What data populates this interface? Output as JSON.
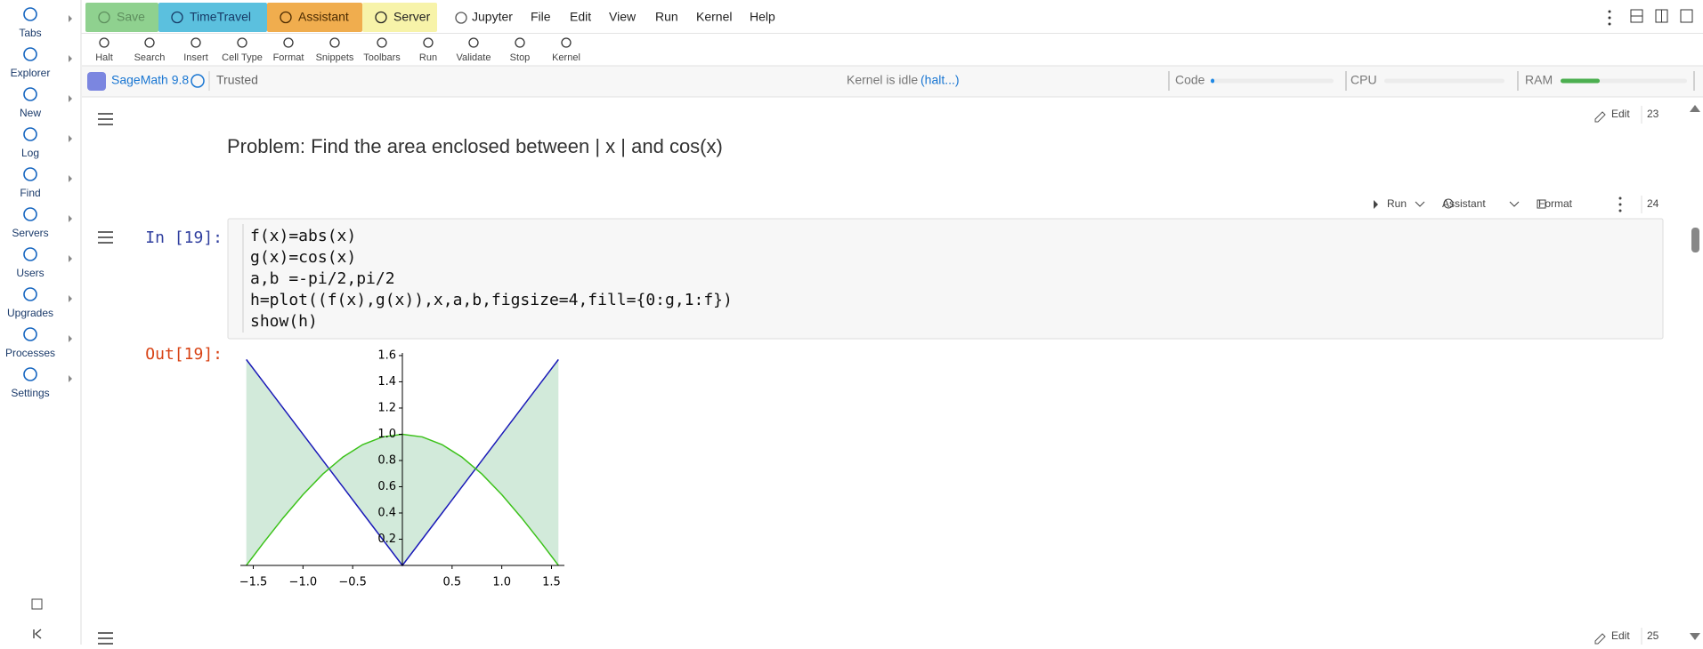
{
  "sidebar": {
    "items": [
      "Tabs",
      "Explorer",
      "New",
      "Log",
      "Find",
      "Servers",
      "Users",
      "Upgrades",
      "Processes",
      "Settings"
    ]
  },
  "toolbar": {
    "buttons": [
      "Save",
      "TimeTravel",
      "Assistant",
      "Server"
    ],
    "menu": [
      "Jupyter",
      "File",
      "Edit",
      "View",
      "Run",
      "Kernel",
      "Help"
    ],
    "actions": [
      "Halt",
      "Search",
      "Insert",
      "Cell Type",
      "Format",
      "Snippets",
      "Toolbars",
      "Run",
      "Validate",
      "Stop",
      "Kernel"
    ]
  },
  "status": {
    "kernel_name": "SageMath 9.8",
    "trusted": "Trusted",
    "kernel_state": "Kernel is idle",
    "halt": "(halt...)",
    "meters": [
      {
        "name": "Code",
        "value": 3
      },
      {
        "name": "CPU",
        "value": 0
      },
      {
        "name": "RAM",
        "value": 31
      }
    ]
  },
  "cells": [
    {
      "number": "23",
      "edit": "Edit",
      "text": "Problem: Find the area enclosed between | x | and cos(x)"
    },
    {
      "number": "24",
      "actions": [
        "Run",
        "Assistant",
        "Format"
      ],
      "prompt_in": "In [19]:",
      "code": [
        "f(x)=abs(x)",
        "g(x)=cos(x)",
        "a,b =-pi/2,pi/2",
        "h=plot((f(x),g(x)),x,a,b,figsize=4,fill={0:g,1:f})",
        "show(h)"
      ],
      "prompt_out": "Out[19]:"
    },
    {
      "number": "25",
      "edit": "Edit"
    }
  ],
  "chart_data": {
    "type": "line",
    "x": [
      -1.57,
      -1.4,
      -1.2,
      -1.0,
      -0.8,
      -0.6,
      -0.4,
      -0.2,
      0,
      0.2,
      0.4,
      0.6,
      0.8,
      1.0,
      1.2,
      1.4,
      1.57
    ],
    "series": [
      {
        "color": "#1a1ab8",
        "values": [
          1.57,
          1.4,
          1.2,
          1.0,
          0.8,
          0.6,
          0.4,
          0.2,
          0,
          0.2,
          0.4,
          0.6,
          0.8,
          1.0,
          1.2,
          1.4,
          1.57
        ]
      },
      {
        "color": "#3cc21a",
        "values": [
          0,
          0.17,
          0.362,
          0.54,
          0.697,
          0.825,
          0.921,
          0.98,
          1,
          0.98,
          0.921,
          0.825,
          0.697,
          0.54,
          0.362,
          0.17,
          0
        ]
      }
    ],
    "fill_color": "#d2eada",
    "xlim": [
      -1.63,
      1.63
    ],
    "ylim": [
      0,
      1.62
    ],
    "xticks": [
      {
        "value": -1.5,
        "label": "−1.5"
      },
      {
        "value": -1.0,
        "label": "−1.0"
      },
      {
        "value": -0.5,
        "label": "−0.5"
      },
      0.5,
      {
        "value": 1.0,
        "label": "1.0"
      },
      1.5
    ],
    "yticks": [
      0.2,
      0.4,
      0.6,
      0.8,
      {
        "value": 1.0,
        "label": "1.0"
      },
      1.2,
      1.4,
      1.6
    ]
  }
}
